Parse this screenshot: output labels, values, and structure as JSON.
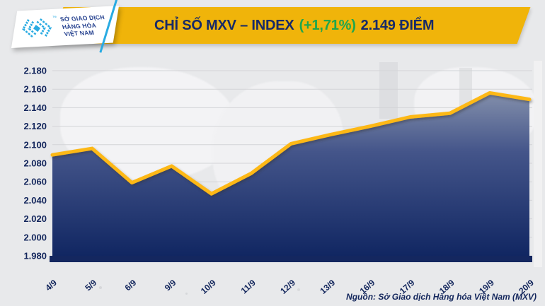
{
  "header": {
    "logo": {
      "lines": [
        "SỞ GIAO DỊCH",
        "HÀNG HÓA",
        "VIỆT NAM"
      ],
      "tm": "™"
    },
    "title_part1": "CHỈ SỐ MXV – INDEX",
    "title_change": "(+1,71%)",
    "title_part2": "2.149 ĐIỂM"
  },
  "source_note": "Nguồn: Sở Giao dịch Hàng hóa Việt Nam (MXV)",
  "colors": {
    "banner_yellow": "#f0b40a",
    "title_navy": "#172a68",
    "change_green": "#1fa64d",
    "line_gold": "#fdb813",
    "fill_top": "#838fab",
    "fill_mid": "#44558a",
    "fill_bottom": "#0e2460",
    "axis_bar_navy": "#14275f",
    "tick_navy": "#13265c",
    "grid_gray": "#d3d4d7",
    "logo_cyan": "#29abe2",
    "logo_text_navy": "#25418f",
    "background_gray": "#e8e9eb"
  },
  "chart_data": {
    "type": "area",
    "title": "CHỈ SỐ MXV – INDEX (+1,71%) 2.149 ĐIỂM",
    "categories": [
      "4/9",
      "5/9",
      "6/9",
      "9/9",
      "10/9",
      "11/9",
      "12/9",
      "13/9",
      "16/9",
      "17/9",
      "18/9",
      "19/9",
      "20/9"
    ],
    "values": [
      2089,
      2096,
      2059,
      2077,
      2047,
      2069,
      2101,
      2111,
      2120,
      2130,
      2134,
      2156,
      2149
    ],
    "value_format_note": "values displayed with Vietnamese thousands dot, e.g. 2149 -> 2.149 điểm",
    "y_ticks": [
      "2.180",
      "2.160",
      "2.140",
      "2.120",
      "2.100",
      "2.080",
      "2.060",
      "2.040",
      "2.020",
      "2.000",
      "1.980"
    ],
    "ylim": [
      1980,
      2180
    ],
    "xlabel": "",
    "ylabel": "",
    "grid": true,
    "legend": "none",
    "last_point_label": "2.149 điểm ngày 20/9",
    "change_percent": "+1,71%"
  }
}
